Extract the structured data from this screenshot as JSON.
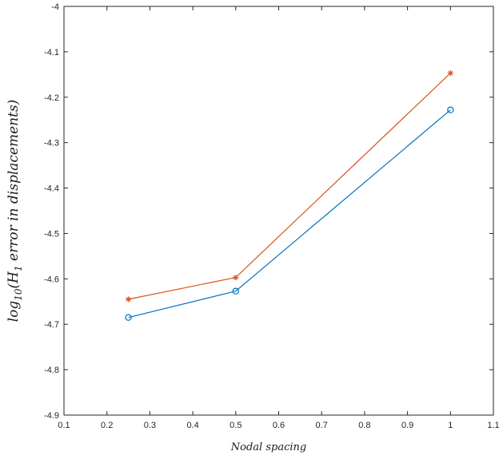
{
  "chart_data": {
    "type": "line",
    "xlabel": "Nodal spacing",
    "ylabel": "log10(H1 error in displacements)",
    "ylabel_parts": {
      "prefix": "log",
      "prefix_sub": "10",
      "open": "(",
      "h": "H",
      "h_sub": "1",
      "rest": " error in displacements)"
    },
    "xlim": [
      0.1,
      1.1
    ],
    "ylim": [
      -4.9,
      -4.0
    ],
    "xticks": [
      0.1,
      0.2,
      0.3,
      0.4,
      0.5,
      0.6,
      0.7,
      0.8,
      0.9,
      1,
      1.1
    ],
    "xtick_labels": [
      "0.1",
      "0.2",
      "0.3",
      "0.4",
      "0.5",
      "0.6",
      "0.7",
      "0.8",
      "0.9",
      "1",
      "1.1"
    ],
    "yticks": [
      -4.9,
      -4.8,
      -4.7,
      -4.6,
      -4.5,
      -4.4,
      -4.3,
      -4.2,
      -4.1,
      -4.0
    ],
    "ytick_labels": [
      "-4.9",
      "-4.8",
      "-4.7",
      "-4.6",
      "-4.5",
      "-4.4",
      "-4.3",
      "-4.2",
      "-4.1",
      "-4"
    ],
    "grid": false,
    "series": [
      {
        "marker": "asterisk",
        "color": "#d95319",
        "x": [
          0.25,
          0.5,
          1.0
        ],
        "y": [
          -4.645,
          -4.597,
          -4.147
        ]
      },
      {
        "marker": "circle",
        "color": "#0072bd",
        "x": [
          0.25,
          0.5,
          1.0
        ],
        "y": [
          -4.685,
          -4.627,
          -4.228
        ]
      }
    ]
  }
}
